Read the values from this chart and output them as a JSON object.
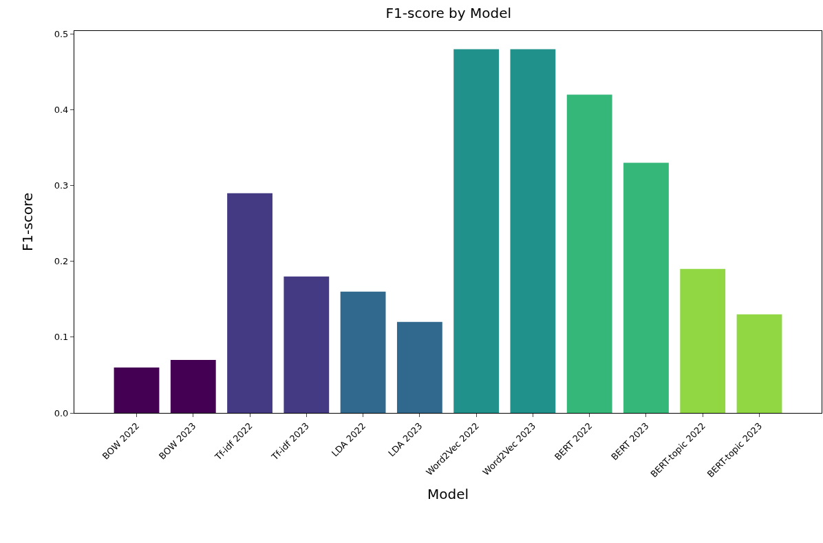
{
  "chart_data": {
    "type": "bar",
    "title": "F1-score by Model",
    "xlabel": "Model",
    "ylabel": "F1-score",
    "categories": [
      "BOW 2022",
      "BOW 2023",
      "Tf-idf 2022",
      "Tf-idf 2023",
      "LDA 2022",
      "LDA 2023",
      "Word2Vec 2022",
      "Word2Vec 2023",
      "BERT 2022",
      "BERT 2023",
      "BERT-topic 2022",
      "BERT-topic 2023"
    ],
    "values": [
      0.06,
      0.07,
      0.29,
      0.18,
      0.16,
      0.12,
      0.48,
      0.48,
      0.42,
      0.33,
      0.19,
      0.13
    ],
    "colors": [
      "#440154",
      "#440154",
      "#443983",
      "#443983",
      "#31688e",
      "#31688e",
      "#21918c",
      "#21918c",
      "#35b779",
      "#35b779",
      "#90d743",
      "#90d743"
    ],
    "ylim": [
      0,
      0.504
    ],
    "yticks": [
      {
        "value": 0,
        "label": "0.0"
      },
      0.1,
      0.2,
      0.3,
      0.4,
      0.5
    ]
  }
}
